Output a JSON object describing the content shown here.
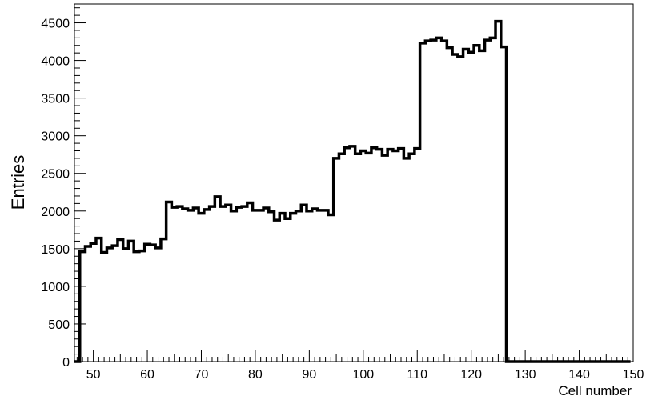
{
  "chart_data": {
    "type": "histogram",
    "title": "",
    "xlabel": "Cell number",
    "ylabel": "Entries",
    "xlim": [
      46.5,
      150
    ],
    "ylim": [
      0,
      4750
    ],
    "grid": false,
    "legend": "none",
    "line_color": "#000000",
    "bin_width": 1,
    "x_ticks": [
      50,
      60,
      70,
      80,
      90,
      100,
      110,
      120,
      130,
      140,
      150
    ],
    "y_ticks": [
      0,
      500,
      1000,
      1500,
      2000,
      2500,
      3000,
      3500,
      4000,
      4500
    ],
    "x_tick_labels": [
      "50",
      "60",
      "70",
      "80",
      "90",
      "100",
      "110",
      "120",
      "130",
      "140",
      "150"
    ],
    "y_tick_labels": [
      "0",
      "500",
      "1000",
      "1500",
      "2000",
      "2500",
      "3000",
      "3500",
      "4000",
      "4500"
    ],
    "bin_lows": [
      46.5,
      47.5,
      48.5,
      49.5,
      50.5,
      51.5,
      52.5,
      53.5,
      54.5,
      55.5,
      56.5,
      57.5,
      58.5,
      59.5,
      60.5,
      61.5,
      62.5,
      63.5,
      64.5,
      65.5,
      66.5,
      67.5,
      68.5,
      69.5,
      70.5,
      71.5,
      72.5,
      73.5,
      74.5,
      75.5,
      76.5,
      77.5,
      78.5,
      79.5,
      80.5,
      81.5,
      82.5,
      83.5,
      84.5,
      85.5,
      86.5,
      87.5,
      88.5,
      89.5,
      90.5,
      91.5,
      92.5,
      93.5,
      94.5,
      95.5,
      96.5,
      97.5,
      98.5,
      99.5,
      100.5,
      101.5,
      102.5,
      103.5,
      104.5,
      105.5,
      106.5,
      107.5,
      108.5,
      109.5,
      110.5,
      111.5,
      112.5,
      113.5,
      114.5,
      115.5,
      116.5,
      117.5,
      118.5,
      119.5,
      120.5,
      121.5,
      122.5,
      123.5,
      124.5,
      125.5,
      126.5,
      127.5,
      128.5,
      129.5,
      130.5,
      131.5,
      132.5,
      133.5,
      134.5,
      135.5,
      136.5,
      137.5,
      138.5,
      139.5,
      140.5,
      141.5,
      142.5,
      143.5,
      144.5,
      145.5,
      146.5,
      147.5,
      148.5,
      149.5
    ],
    "values": [
      0,
      1460,
      1530,
      1570,
      1640,
      1450,
      1510,
      1540,
      1620,
      1500,
      1600,
      1460,
      1470,
      1560,
      1550,
      1510,
      1630,
      2120,
      2050,
      2060,
      2030,
      2010,
      2040,
      1970,
      2020,
      2060,
      2190,
      2060,
      2080,
      2000,
      2050,
      2060,
      2110,
      2010,
      2010,
      2040,
      1990,
      1880,
      1970,
      1900,
      1970,
      2000,
      2080,
      2000,
      2030,
      2010,
      2010,
      1950,
      2700,
      2760,
      2840,
      2860,
      2760,
      2800,
      2770,
      2840,
      2820,
      2740,
      2820,
      2800,
      2830,
      2700,
      2760,
      2830,
      4230,
      4260,
      4270,
      4300,
      4260,
      4170,
      4080,
      4050,
      4150,
      4110,
      4200,
      4130,
      4270,
      4300,
      4520,
      4180,
      0,
      0,
      0,
      0,
      0,
      0,
      0,
      0,
      0,
      0,
      0,
      0,
      0,
      0,
      0,
      0,
      0,
      0,
      0,
      0,
      0,
      0,
      0
    ]
  }
}
